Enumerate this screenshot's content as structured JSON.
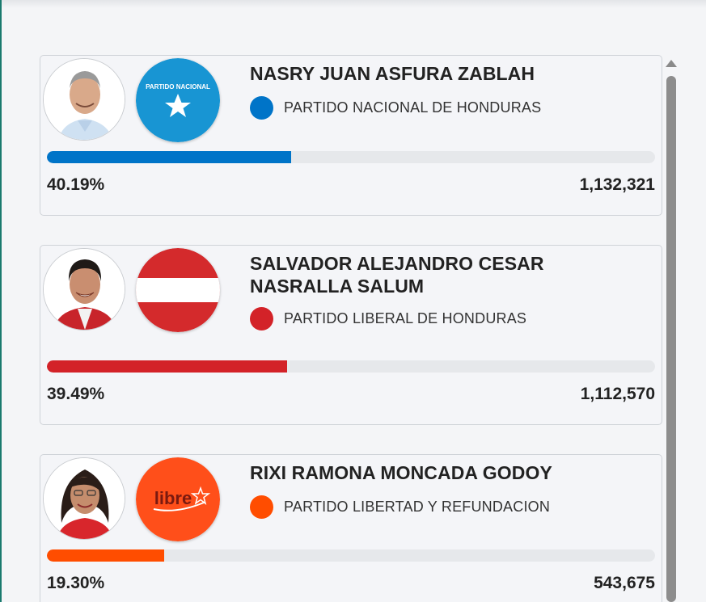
{
  "candidates": [
    {
      "name": "NASRY JUAN ASFURA ZABLAH",
      "party": "PARTIDO NACIONAL DE HONDURAS",
      "party_color": "#0074c8",
      "logo_text": "PARTIDO NACIONAL",
      "percent_label": "40.19%",
      "percent": 40.19,
      "votes": "1,132,321"
    },
    {
      "name": "SALVADOR ALEJANDRO CESAR NASRALLA SALUM",
      "party": "PARTIDO LIBERAL DE HONDURAS",
      "party_color": "#d32228",
      "percent_label": "39.49%",
      "percent": 39.49,
      "votes": "1,112,570"
    },
    {
      "name": "RIXI RAMONA MONCADA GODOY",
      "party": "PARTIDO LIBERTAD Y REFUNDACION",
      "party_color": "#ff4d00",
      "logo_text": "libre",
      "percent_label": "19.30%",
      "percent": 19.3,
      "votes": "543,675"
    }
  ]
}
